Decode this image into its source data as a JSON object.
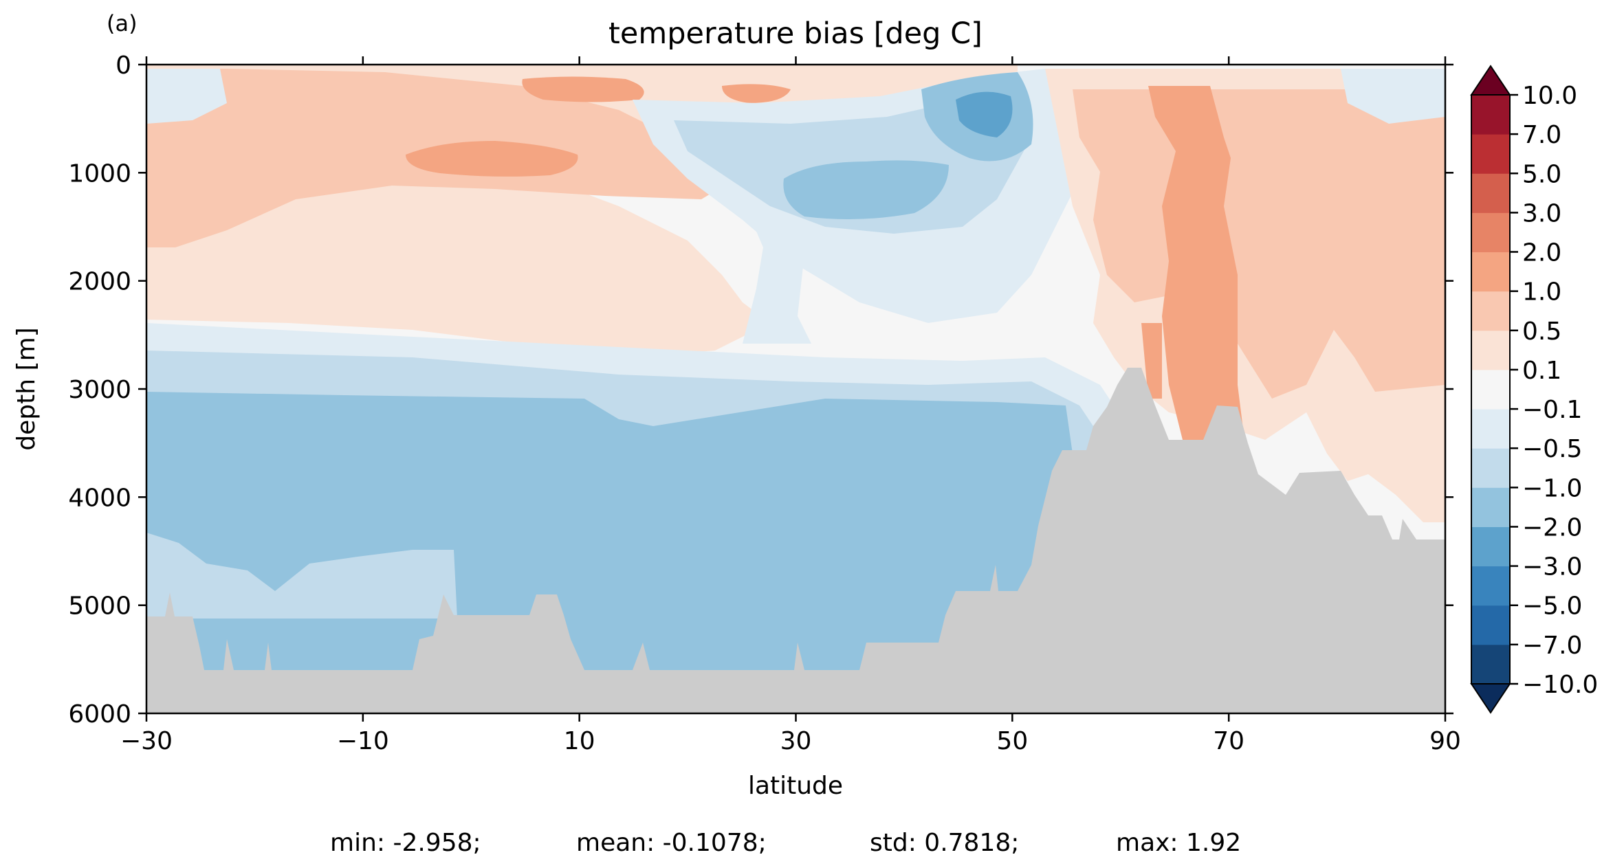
{
  "panel_label": "(a)",
  "chart_data": {
    "type": "heatmap",
    "title": "temperature bias [deg C]",
    "xlabel": "latitude",
    "ylabel": "depth [m]",
    "xlim": [
      -30,
      90
    ],
    "ylim": [
      6000,
      0
    ],
    "y_inverted": true,
    "x_ticks": [
      "−30",
      "−10",
      "10",
      "30",
      "50",
      "70",
      "90"
    ],
    "x_tick_values": [
      -30,
      -10,
      10,
      30,
      50,
      70,
      90
    ],
    "y_ticks": [
      "0",
      "1000",
      "2000",
      "3000",
      "4000",
      "5000",
      "6000"
    ],
    "y_tick_values": [
      0,
      1000,
      2000,
      3000,
      4000,
      5000,
      6000
    ],
    "grid": false,
    "colormap": "RdBu_r",
    "colorbar": {
      "placement": "right",
      "extend": "both",
      "levels": [
        -10.0,
        -7.0,
        -5.0,
        -3.0,
        -2.0,
        -1.0,
        -0.5,
        -0.1,
        0.1,
        0.5,
        1.0,
        2.0,
        3.0,
        5.0,
        7.0,
        10.0
      ],
      "tick_labels": [
        "−10.0",
        "−7.0",
        "−5.0",
        "−3.0",
        "−2.0",
        "−1.0",
        "−0.5",
        "−0.1",
        "0.1",
        "0.5",
        "1.0",
        "2.0",
        "3.0",
        "5.0",
        "7.0",
        "10.0"
      ],
      "colors": [
        "#154577",
        "#2469a8",
        "#3984bd",
        "#5da2cc",
        "#93c3de",
        "#c2dbeb",
        "#e0ecf4",
        "#f6f6f6",
        "#fae3d6",
        "#f9c8b1",
        "#f4a582",
        "#e78466",
        "#d45f4d",
        "#bb2f33",
        "#98142b"
      ],
      "under_color": "#0b2c5c",
      "over_color": "#6b0021"
    },
    "land_color": "#cccccc",
    "stats": {
      "min": "min: -2.958;",
      "mean": "mean: -0.1078;",
      "std": "std: 0.7818;",
      "max": "max: 1.92"
    }
  }
}
